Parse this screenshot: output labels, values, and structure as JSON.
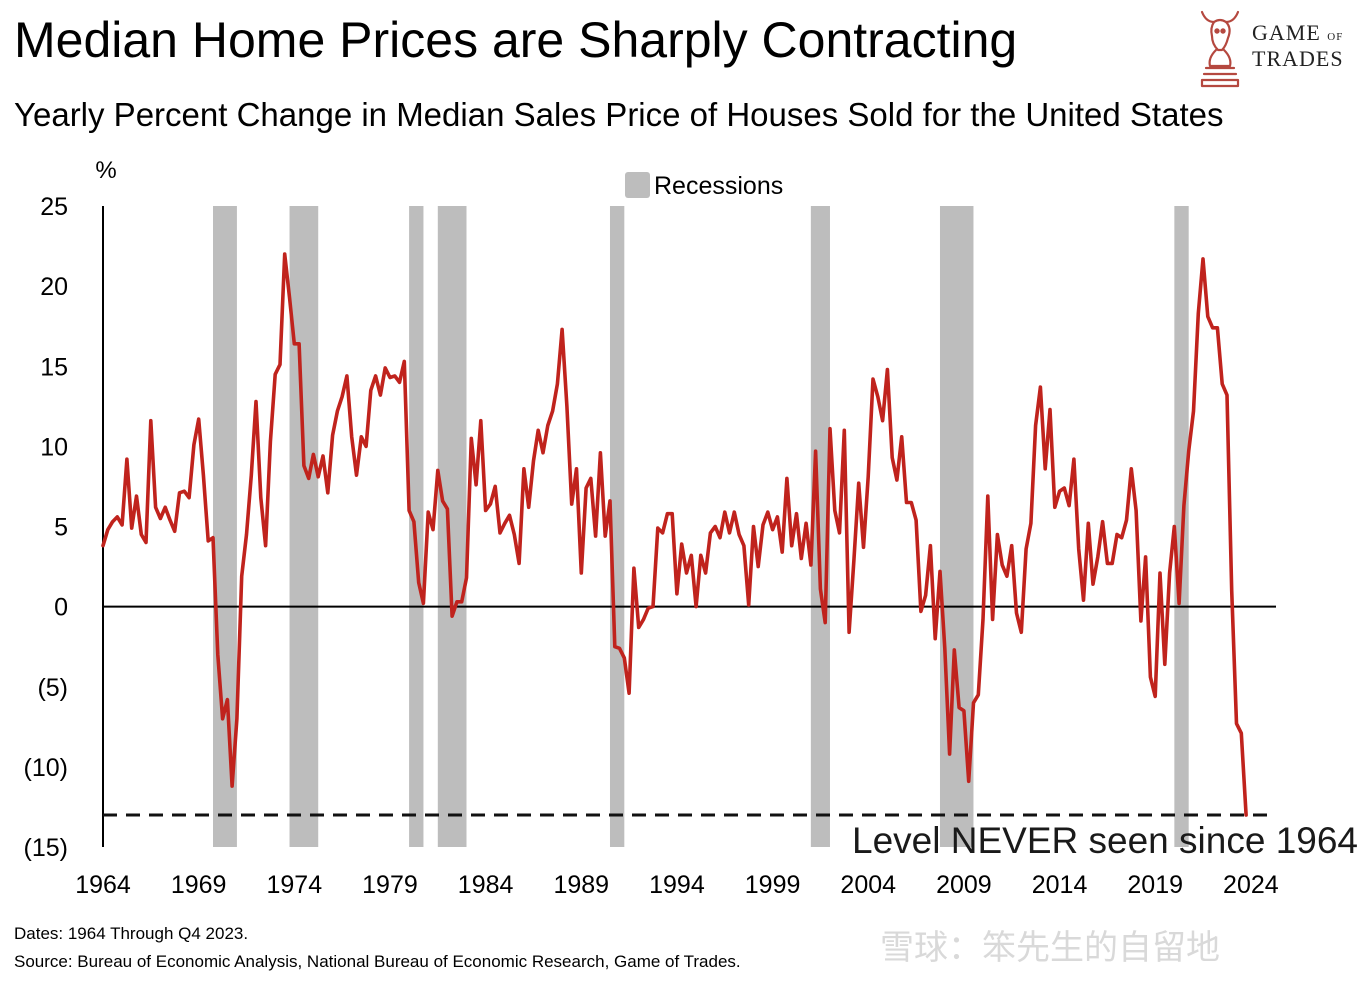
{
  "header": {
    "title": "Median Home Prices are Sharply Contracting",
    "subtitle": "Yearly Percent Change in Median Sales Price of Houses Sold for the United States"
  },
  "logo": {
    "line1": "GAME",
    "line2": "OF",
    "line3": "TRADES",
    "icon": "bull-head-knight-icon"
  },
  "footer": {
    "dates": "Dates: 1964 Through Q4 2023.",
    "source": "Source: Bureau of Economic Analysis, National Bureau of Economic Research, Game of Trades."
  },
  "watermark": "雪球：笨先生的自留地",
  "colors": {
    "line": "#c0231d",
    "recession": "#bdbdbd",
    "axis": "#000000"
  },
  "chart_data": {
    "type": "line",
    "ylabel": "%",
    "ylim": [
      -15,
      25
    ],
    "xlim": [
      1964,
      2025
    ],
    "y_ticks": [
      25,
      20,
      15,
      10,
      5,
      0,
      -5,
      -10,
      -15
    ],
    "y_tick_labels": [
      "25",
      "20",
      "15",
      "10",
      "5",
      "0",
      "(5)",
      "(10)",
      "(15)"
    ],
    "x_ticks": [
      1964,
      1969,
      1974,
      1979,
      1984,
      1989,
      1994,
      1999,
      2004,
      2009,
      2014,
      2019,
      2024
    ],
    "x_tick_labels": [
      "1964",
      "1969",
      "1974",
      "1979",
      "1984",
      "1989",
      "1994",
      "1999",
      "2004",
      "2009",
      "2014",
      "2019",
      "2024"
    ],
    "legend": {
      "label": "Recessions",
      "placement": "top-center"
    },
    "recessions": [
      [
        1969.75,
        1970.0,
        1971.0
      ],
      [
        1973.75,
        1975.25
      ],
      [
        1980.0,
        1980.75
      ],
      [
        1981.5,
        1983.0
      ],
      [
        1990.5,
        1991.25
      ],
      [
        2001.0,
        2002.0
      ],
      [
        2007.75,
        2009.5
      ],
      [
        2020.0,
        2020.75
      ]
    ],
    "threshold": {
      "value": -13,
      "label": "Level NEVER seen since 1964",
      "style": "dashed"
    },
    "series": [
      {
        "name": "Yearly % Change in Median Sales Price",
        "x": [
          1964.0,
          1964.25,
          1964.5,
          1964.75,
          1965.0,
          1965.25,
          1965.5,
          1965.75,
          1966.0,
          1966.25,
          1966.5,
          1966.75,
          1967.0,
          1967.25,
          1967.5,
          1967.75,
          1968.0,
          1968.25,
          1968.5,
          1968.75,
          1969.0,
          1969.25,
          1969.5,
          1969.75,
          1970.0,
          1970.25,
          1970.5,
          1970.75,
          1971.0,
          1971.25,
          1971.5,
          1971.75,
          1972.0,
          1972.25,
          1972.5,
          1972.75,
          1973.0,
          1973.25,
          1973.5,
          1973.75,
          1974.0,
          1974.25,
          1974.5,
          1974.75,
          1975.0,
          1975.25,
          1975.5,
          1975.75,
          1976.0,
          1976.25,
          1976.5,
          1976.75,
          1977.0,
          1977.25,
          1977.5,
          1977.75,
          1978.0,
          1978.25,
          1978.5,
          1978.75,
          1979.0,
          1979.25,
          1979.5,
          1979.75,
          1980.0,
          1980.25,
          1980.5,
          1980.75,
          1981.0,
          1981.25,
          1981.5,
          1981.75,
          1982.0,
          1982.25,
          1982.5,
          1982.75,
          1983.0,
          1983.25,
          1983.5,
          1983.75,
          1984.0,
          1984.25,
          1984.5,
          1984.75,
          1985.0,
          1985.25,
          1985.5,
          1985.75,
          1986.0,
          1986.25,
          1986.5,
          1986.75,
          1987.0,
          1987.25,
          1987.5,
          1987.75,
          1988.0,
          1988.25,
          1988.5,
          1988.75,
          1989.0,
          1989.25,
          1989.5,
          1989.75,
          1990.0,
          1990.25,
          1990.5,
          1990.75,
          1991.0,
          1991.25,
          1991.5,
          1991.75,
          1992.0,
          1992.25,
          1992.5,
          1992.75,
          1993.0,
          1993.25,
          1993.5,
          1993.75,
          1994.0,
          1994.25,
          1994.5,
          1994.75,
          1995.0,
          1995.25,
          1995.5,
          1995.75,
          1996.0,
          1996.25,
          1996.5,
          1996.75,
          1997.0,
          1997.25,
          1997.5,
          1997.75,
          1998.0,
          1998.25,
          1998.5,
          1998.75,
          1999.0,
          1999.25,
          1999.5,
          1999.75,
          2000.0,
          2000.25,
          2000.5,
          2000.75,
          2001.0,
          2001.25,
          2001.5,
          2001.75,
          2002.0,
          2002.25,
          2002.5,
          2002.75,
          2003.0,
          2003.25,
          2003.5,
          2003.75,
          2004.0,
          2004.25,
          2004.5,
          2004.75,
          2005.0,
          2005.25,
          2005.5,
          2005.75,
          2006.0,
          2006.25,
          2006.5,
          2006.75,
          2007.0,
          2007.25,
          2007.5,
          2007.75,
          2008.0,
          2008.25,
          2008.5,
          2008.75,
          2009.0,
          2009.25,
          2009.5,
          2009.75,
          2010.0,
          2010.25,
          2010.5,
          2010.75,
          2011.0,
          2011.25,
          2011.5,
          2011.75,
          2012.0,
          2012.25,
          2012.5,
          2012.75,
          2013.0,
          2013.25,
          2013.5,
          2013.75,
          2014.0,
          2014.25,
          2014.5,
          2014.75,
          2015.0,
          2015.25,
          2015.5,
          2015.75,
          2016.0,
          2016.25,
          2016.5,
          2016.75,
          2017.0,
          2017.25,
          2017.5,
          2017.75,
          2018.0,
          2018.25,
          2018.5,
          2018.75,
          2019.0,
          2019.25,
          2019.5,
          2019.75,
          2020.0,
          2020.25,
          2020.5,
          2020.75,
          2021.0,
          2021.25,
          2021.5,
          2021.75,
          2022.0,
          2022.25,
          2022.5,
          2022.75,
          2023.0,
          2023.25,
          2023.5,
          2023.75
        ],
        "values": [
          3.8,
          4.8,
          5.3,
          5.6,
          5.1,
          9.2,
          4.9,
          6.9,
          4.5,
          4.0,
          11.6,
          6.2,
          5.5,
          6.2,
          5.4,
          4.7,
          7.1,
          7.2,
          6.8,
          10.1,
          11.7,
          8.2,
          4.1,
          4.3,
          -3.0,
          -7.0,
          -5.8,
          -11.2,
          -7.0,
          1.9,
          4.5,
          8.2,
          12.8,
          6.8,
          3.8,
          10.3,
          14.5,
          15.1,
          22.0,
          19.3,
          16.4,
          16.4,
          8.8,
          8.0,
          9.5,
          8.1,
          9.4,
          7.1,
          10.7,
          12.2,
          13.1,
          14.4,
          10.6,
          8.2,
          10.6,
          10.0,
          13.5,
          14.4,
          13.2,
          14.9,
          14.3,
          14.4,
          14.0,
          15.3,
          6.0,
          5.3,
          1.5,
          0.2,
          5.9,
          4.8,
          8.5,
          6.6,
          6.1,
          -0.6,
          0.3,
          0.3,
          1.8,
          10.5,
          7.6,
          11.6,
          6.0,
          6.4,
          7.5,
          4.6,
          5.2,
          5.7,
          4.5,
          2.7,
          8.6,
          6.2,
          9.1,
          11.0,
          9.6,
          11.3,
          12.2,
          13.9,
          17.3,
          12.5,
          6.4,
          8.6,
          2.1,
          7.4,
          8.0,
          4.4,
          9.6,
          4.4,
          6.6,
          -2.5,
          -2.6,
          -3.2,
          -5.4,
          2.4,
          -1.3,
          -0.8,
          -0.1,
          0.0,
          4.9,
          4.6,
          5.8,
          5.8,
          0.8,
          3.9,
          2.1,
          3.2,
          0.0,
          3.2,
          2.1,
          4.6,
          5.0,
          4.3,
          5.9,
          4.6,
          5.9,
          4.5,
          3.8,
          0.1,
          5.0,
          2.5,
          5.1,
          5.9,
          4.8,
          5.6,
          3.4,
          8.0,
          3.8,
          5.8,
          3.0,
          5.2,
          2.6,
          9.7,
          1.1,
          -1.0,
          11.1,
          6.0,
          4.6,
          11.0,
          -1.6,
          2.9,
          7.7,
          3.7,
          8.1,
          14.2,
          13.1,
          11.6,
          14.8,
          9.3,
          7.9,
          10.6,
          6.5,
          6.5,
          5.4,
          -0.3,
          0.7,
          3.8,
          -2.0,
          2.2,
          -2.6,
          -9.2,
          -2.7,
          -6.3,
          -6.5,
          -10.9,
          -6.0,
          -5.5,
          -0.8,
          6.9,
          -0.8,
          4.5,
          2.6,
          1.9,
          3.8,
          -0.4,
          -1.6,
          3.6,
          5.2,
          11.3,
          13.7,
          8.6,
          12.3,
          6.2,
          7.2,
          7.4,
          6.3,
          9.2,
          3.6,
          0.4,
          5.2,
          1.4,
          3.1,
          5.3,
          2.7,
          2.7,
          4.5,
          4.3,
          5.4,
          8.6,
          6.0,
          -0.9,
          3.1,
          -4.4,
          -5.6,
          2.1,
          -3.6,
          2.1,
          5.0,
          0.2,
          6.3,
          9.7,
          12.2,
          18.3,
          21.7,
          18.1,
          17.4,
          17.4,
          13.9,
          13.2,
          1.0,
          -7.3,
          -7.9,
          -13.0
        ]
      }
    ]
  }
}
